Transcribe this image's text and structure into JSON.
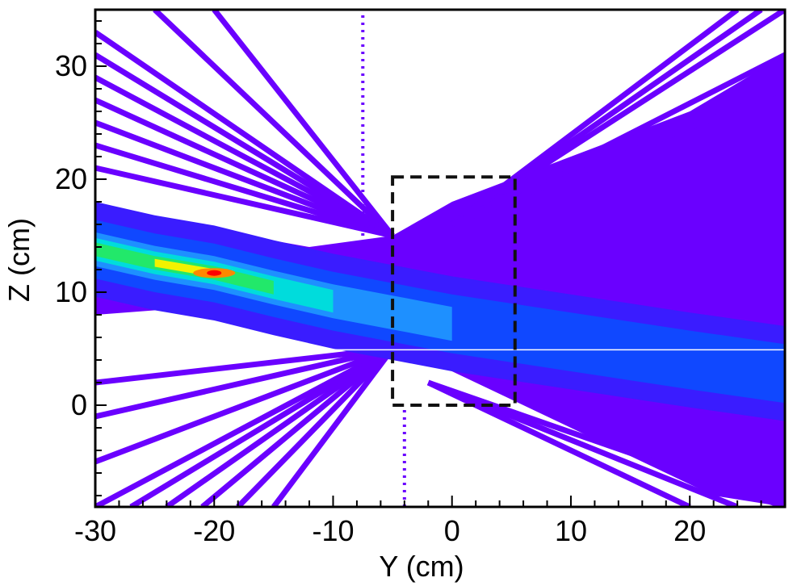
{
  "chart_data": {
    "type": "heatmap",
    "title": "",
    "xlabel": "Y (cm)",
    "ylabel": "Z (cm)",
    "xlim": [
      -30,
      28
    ],
    "ylim": [
      -9,
      35
    ],
    "x_ticks": [
      {
        "value": -30,
        "label": "-30"
      },
      {
        "value": -20,
        "label": "-20"
      },
      {
        "value": -10,
        "label": "-10"
      },
      {
        "value": 0,
        "label": "0"
      },
      {
        "value": 10,
        "label": "10"
      },
      {
        "value": 20,
        "label": "20"
      }
    ],
    "y_ticks": [
      {
        "value": 0,
        "label": "0"
      },
      {
        "value": 10,
        "label": "10"
      },
      {
        "value": 20,
        "label": "20"
      },
      {
        "value": 30,
        "label": "30"
      }
    ],
    "colormap": [
      "#ffffff",
      "#6a00ff",
      "#3a1cff",
      "#1048ff",
      "#1e90ff",
      "#00dcdc",
      "#22e86a",
      "#f2f200",
      "#ff8800",
      "#ff0000"
    ],
    "beam_core": {
      "path": [
        [
          -30,
          13.8
        ],
        [
          -25,
          12.6
        ],
        [
          -20,
          11.7
        ],
        [
          -15,
          10.4
        ],
        [
          -10,
          9.2
        ],
        [
          -5,
          8.2
        ],
        [
          0,
          7.2
        ],
        [
          10,
          5.6
        ],
        [
          20,
          4.0
        ],
        [
          28,
          2.8
        ]
      ],
      "peak": {
        "y": -20,
        "z": 11.7
      }
    },
    "envelope_regions": [
      {
        "name": "upper-cone",
        "polygon": [
          [
            -30,
            17
          ],
          [
            -20,
            15.5
          ],
          [
            -12,
            14
          ],
          [
            -5,
            15
          ],
          [
            0,
            18
          ],
          [
            10,
            22
          ],
          [
            20,
            26
          ],
          [
            28,
            31
          ],
          [
            28,
            2
          ],
          [
            20,
            1.5
          ],
          [
            10,
            3
          ],
          [
            5,
            4.5
          ],
          [
            0,
            6
          ],
          [
            -5,
            7.5
          ],
          [
            -12,
            9.5
          ],
          [
            -20,
            10
          ],
          [
            -30,
            9
          ]
        ]
      },
      {
        "name": "lower-cone",
        "polygon": [
          [
            -30,
            8
          ],
          [
            -20,
            8.8
          ],
          [
            -12,
            8.4
          ],
          [
            -5,
            6
          ],
          [
            0,
            3
          ],
          [
            8,
            -1
          ],
          [
            16,
            -5
          ],
          [
            22,
            -8
          ],
          [
            28,
            -9
          ],
          [
            28,
            4
          ],
          [
            20,
            3.8
          ],
          [
            10,
            5
          ],
          [
            0,
            6.2
          ],
          [
            -5,
            7.2
          ],
          [
            -12,
            8.6
          ],
          [
            -20,
            10
          ],
          [
            -30,
            10.5
          ]
        ]
      }
    ],
    "streak_groups": [
      {
        "name": "upper-left streaks",
        "origin": {
          "y": -5,
          "z": 15
        },
        "targets": [
          {
            "y": -30,
            "z": 33
          },
          {
            "y": -30,
            "z": 31
          },
          {
            "y": -30,
            "z": 29
          },
          {
            "y": -30,
            "z": 27
          },
          {
            "y": -30,
            "z": 25
          },
          {
            "y": -30,
            "z": 23
          },
          {
            "y": -30,
            "z": 21
          },
          {
            "y": -25,
            "z": 35
          },
          {
            "y": -20,
            "z": 35
          }
        ]
      },
      {
        "name": "lower-left streaks",
        "origin": {
          "y": -5,
          "z": 5
        },
        "targets": [
          {
            "y": -30,
            "z": -9
          },
          {
            "y": -27,
            "z": -9
          },
          {
            "y": -24,
            "z": -9
          },
          {
            "y": -21,
            "z": -9
          },
          {
            "y": -18,
            "z": -9
          },
          {
            "y": -30,
            "z": -5
          },
          {
            "y": -30,
            "z": -1
          },
          {
            "y": -30,
            "z": 2
          },
          {
            "y": -15,
            "z": -9
          }
        ]
      },
      {
        "name": "upper-right streaks",
        "origin": {
          "y": 0,
          "z": 16
        },
        "targets": [
          {
            "y": 28,
            "z": 35
          },
          {
            "y": 26,
            "z": 35
          },
          {
            "y": 24,
            "z": 35
          },
          {
            "y": 28,
            "z": 31
          },
          {
            "y": 28,
            "z": 28
          }
        ]
      },
      {
        "name": "lower-right streaks",
        "origin": {
          "y": -2,
          "z": 2
        },
        "targets": [
          {
            "y": 20,
            "z": -9
          },
          {
            "y": 24,
            "z": -9
          },
          {
            "y": 28,
            "z": -9
          }
        ]
      }
    ],
    "dotted_columns": [
      {
        "y": -7.5,
        "z_from": 15,
        "z_to": 35
      },
      {
        "y": -4,
        "z_from": -9,
        "z_to": 0
      }
    ],
    "horizontal_line": {
      "z": 4.9,
      "color": "#ffffff"
    },
    "dashed_box": {
      "y0": -5,
      "y1": 5.3,
      "z0": 0,
      "z1": 20.2,
      "color": "#111111"
    }
  }
}
